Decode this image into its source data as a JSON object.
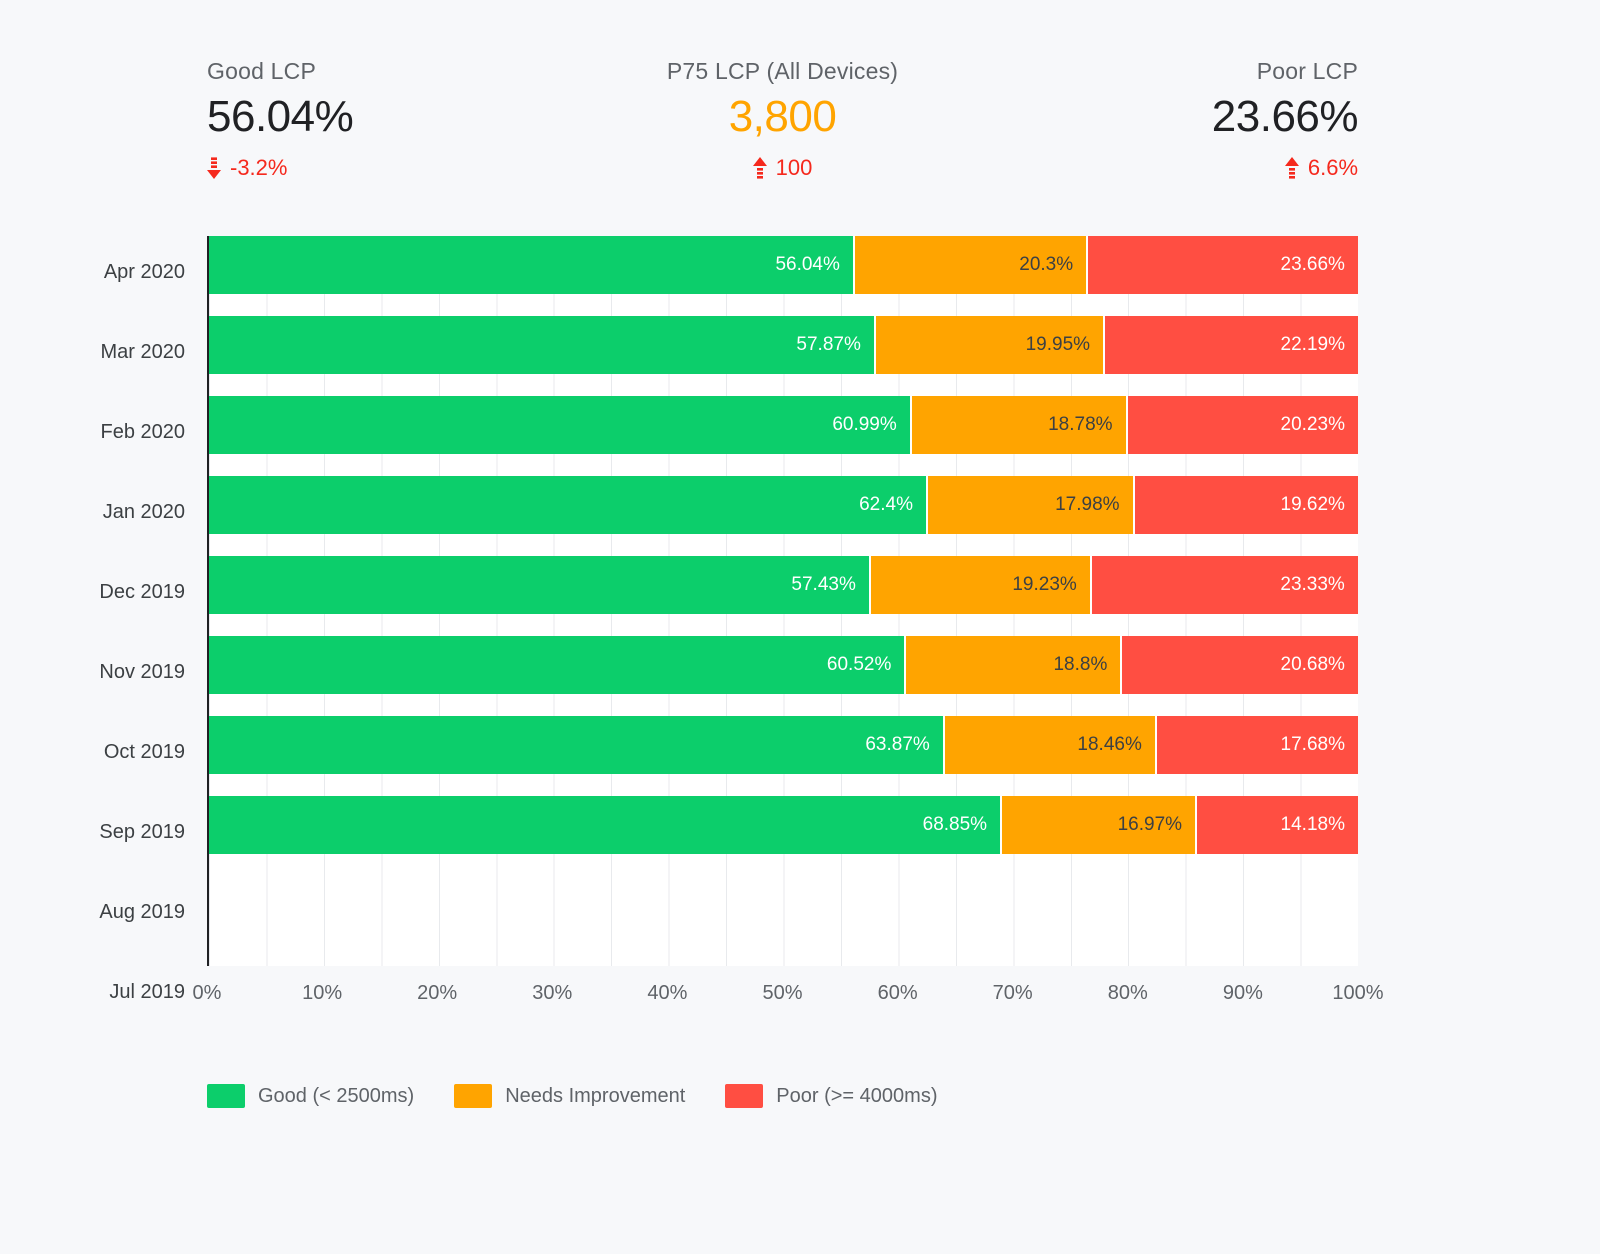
{
  "stats": {
    "good": {
      "label": "Good LCP",
      "value": "56.04%",
      "change": "-3.2%",
      "direction": "down"
    },
    "p75": {
      "label": "P75 LCP (All Devices)",
      "value": "3,800",
      "change": "100",
      "direction": "up"
    },
    "poor": {
      "label": "Poor LCP",
      "value": "23.66%",
      "change": "6.6%",
      "direction": "up"
    }
  },
  "chart_data": {
    "type": "bar",
    "orientation": "horizontal",
    "stacked": true,
    "unit": "%",
    "categories": [
      "Apr 2020",
      "Mar 2020",
      "Feb 2020",
      "Jan 2020",
      "Dec 2019",
      "Nov 2019",
      "Oct 2019",
      "Sep 2019",
      "Aug 2019",
      "Jul 2019"
    ],
    "series": [
      {
        "name": "Good (< 2500ms)",
        "color": "#0cce6b",
        "label_color": "#ffffff",
        "values": [
          56.04,
          57.87,
          60.99,
          62.4,
          57.43,
          60.52,
          63.87,
          68.85,
          null,
          null
        ],
        "labels": [
          "56.04%",
          "57.87%",
          "60.99%",
          "62.4%",
          "57.43%",
          "60.52%",
          "63.87%",
          "68.85%",
          "",
          ""
        ]
      },
      {
        "name": "Needs Improvement",
        "color": "#ffa400",
        "label_color": "#3c4043",
        "values": [
          20.3,
          19.95,
          18.78,
          17.98,
          19.23,
          18.8,
          18.46,
          16.97,
          null,
          null
        ],
        "labels": [
          "20.3%",
          "19.95%",
          "18.78%",
          "17.98%",
          "19.23%",
          "18.8%",
          "18.46%",
          "16.97%",
          "",
          ""
        ]
      },
      {
        "name": "Poor (>= 4000ms)",
        "color": "#ff4e42",
        "label_color": "#ffffff",
        "values": [
          23.66,
          22.19,
          20.23,
          19.62,
          23.33,
          20.68,
          17.68,
          14.18,
          null,
          null
        ],
        "labels": [
          "23.66%",
          "22.19%",
          "20.23%",
          "19.62%",
          "23.33%",
          "20.68%",
          "17.68%",
          "14.18%",
          "",
          ""
        ]
      }
    ],
    "x_ticks": [
      "0%",
      "10%",
      "20%",
      "30%",
      "40%",
      "50%",
      "60%",
      "70%",
      "80%",
      "90%",
      "100%"
    ],
    "xlim": [
      0,
      100
    ],
    "grid": {
      "vertical_interval_percent": 5,
      "color": "#e8eaed"
    },
    "legend_position": "bottom"
  },
  "colors": {
    "background": "#f7f8fa",
    "plot_background": "#ffffff",
    "axis_line": "#202124",
    "gridline": "#e8eaed",
    "kpi_value_dark": "#202124",
    "kpi_value_orange": "#ffa400",
    "kpi_label_gray": "#5f6368",
    "change_red": "#f5291d"
  }
}
